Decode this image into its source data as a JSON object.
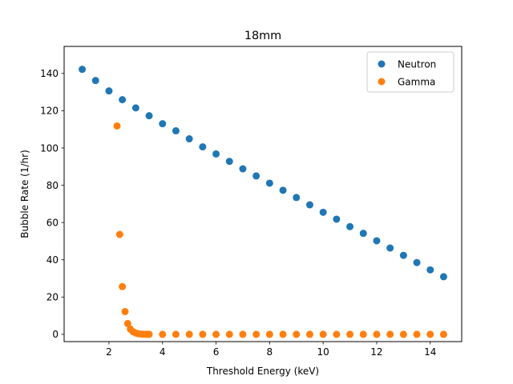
{
  "chart_data": {
    "type": "scatter",
    "title": "18mm",
    "xlabel": "Threshold Energy (keV)",
    "ylabel": "Bubble Rate (1/hr)",
    "xlim": [
      0.325,
      15.175
    ],
    "ylim": [
      -3.9,
      154.5
    ],
    "xticks": [
      2,
      4,
      6,
      8,
      10,
      12,
      14
    ],
    "yticks": [
      0,
      20,
      40,
      60,
      80,
      100,
      120,
      140
    ],
    "legend_position": "top-right",
    "xerr": 0.12,
    "grid": false,
    "series": [
      {
        "name": "Neutron",
        "color": "#1f77b4",
        "x": [
          1.0,
          1.5,
          2.0,
          2.5,
          3.0,
          3.5,
          4.0,
          4.5,
          5.0,
          5.5,
          6.0,
          6.5,
          7.0,
          7.5,
          8.0,
          8.5,
          9.0,
          9.5,
          10.0,
          10.5,
          11.0,
          11.5,
          12.0,
          12.5,
          13.0,
          13.5,
          14.0,
          14.5
        ],
        "y": [
          142.2,
          136.2,
          130.6,
          125.9,
          121.5,
          117.3,
          113.0,
          109.2,
          104.9,
          100.6,
          96.8,
          92.8,
          88.8,
          85.0,
          81.1,
          77.3,
          73.4,
          69.5,
          65.5,
          61.8,
          57.8,
          54.2,
          50.2,
          46.3,
          42.4,
          38.5,
          34.6,
          30.9
        ]
      },
      {
        "name": "Gamma",
        "color": "#ff7f0e",
        "x": [
          2.3,
          2.4,
          2.5,
          2.6,
          2.7,
          2.8,
          2.9,
          3.0,
          3.1,
          3.2,
          3.3,
          3.4,
          3.5,
          4.0,
          4.5,
          5.0,
          5.5,
          6.0,
          6.5,
          7.0,
          7.5,
          8.0,
          8.5,
          9.0,
          9.5,
          10.0,
          10.5,
          11.0,
          11.5,
          12.0,
          12.5,
          13.0,
          13.5,
          14.0,
          14.5
        ],
        "y": [
          111.8,
          53.6,
          25.6,
          12.2,
          5.8,
          2.8,
          1.4,
          0.7,
          0.3,
          0.15,
          0.07,
          0.03,
          0.0,
          0.0,
          0.0,
          0.0,
          0.0,
          0.0,
          0.0,
          0.0,
          0.0,
          0.0,
          0.0,
          0.0,
          0.0,
          0.0,
          0.0,
          0.0,
          0.0,
          0.0,
          0.0,
          0.0,
          0.0,
          0.0,
          0.0
        ]
      }
    ]
  }
}
